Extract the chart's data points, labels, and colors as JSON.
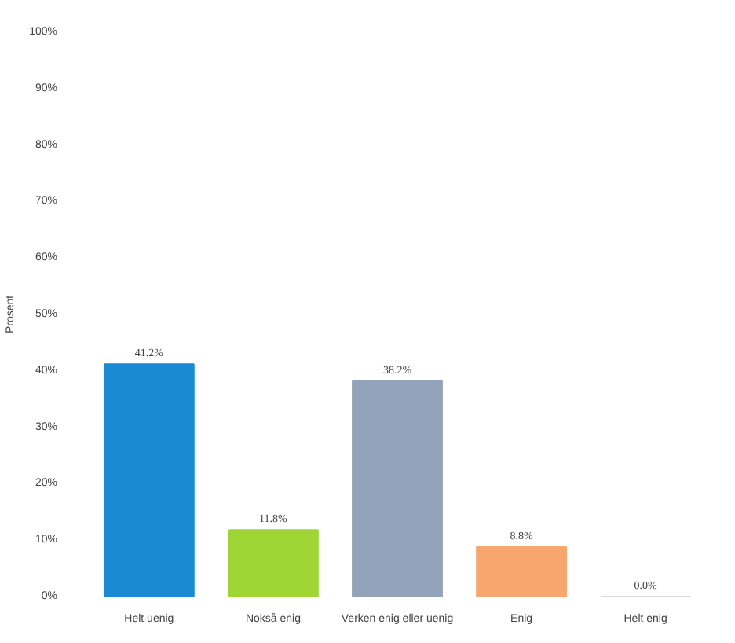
{
  "chart_data": {
    "type": "bar",
    "ylabel": "Prosent",
    "categories": [
      "Helt uenig",
      "Nokså enig",
      "Verken enig eller uenig",
      "Enig",
      "Helt enig"
    ],
    "values": [
      41.2,
      11.8,
      38.2,
      8.8,
      0.0
    ],
    "colors": [
      "#1a8ad4",
      "#9fd534",
      "#93a3b9",
      "#f7a66e",
      "#d9d9d9"
    ],
    "value_labels": [
      "41.2%",
      "11.8%",
      "38.2%",
      "8.8%",
      "0.0%"
    ],
    "ylim": [
      0,
      100
    ],
    "yticks": [
      {
        "value": 0,
        "label": "0%"
      },
      {
        "value": 10,
        "label": "10%"
      },
      {
        "value": 20,
        "label": "20%"
      },
      {
        "value": 30,
        "label": "30%"
      },
      {
        "value": 40,
        "label": "40%"
      },
      {
        "value": 50,
        "label": "50%"
      },
      {
        "value": 60,
        "label": "60%"
      },
      {
        "value": 70,
        "label": "70%"
      },
      {
        "value": 80,
        "label": "80%"
      },
      {
        "value": 90,
        "label": "90%"
      },
      {
        "value": 100,
        "label": "100%"
      }
    ],
    "grid": false
  }
}
